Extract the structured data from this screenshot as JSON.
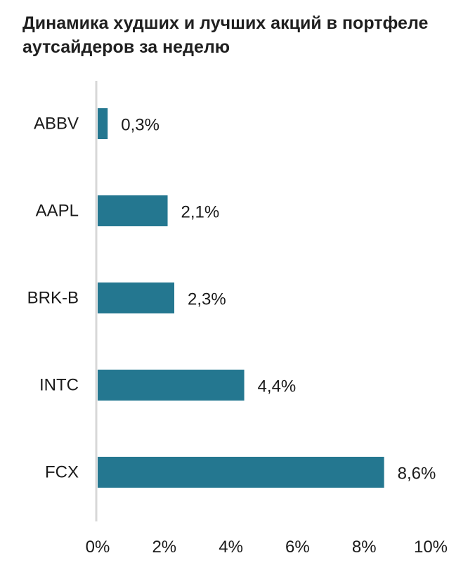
{
  "title": "Динамика худших и лучших акций в портфеле аутсайдеров за неделю",
  "colors": {
    "bar": "#247790",
    "axis": "#d7d7d7"
  },
  "chart_data": {
    "type": "bar",
    "orientation": "horizontal",
    "title": "Динамика худших и лучших акций в портфеле аутсайдеров за неделю",
    "categories": [
      "ABBV",
      "AAPL",
      "BRK-B",
      "INTC",
      "FCX"
    ],
    "values": [
      0.3,
      2.1,
      2.3,
      4.4,
      8.6
    ],
    "value_labels": [
      "0,3%",
      "2,1%",
      "2,3%",
      "4,4%",
      "8,6%"
    ],
    "xlim": [
      0,
      10
    ],
    "xticks": [
      0,
      2,
      4,
      6,
      8,
      10
    ],
    "xtick_labels": [
      "0%",
      "2%",
      "4%",
      "6%",
      "8%",
      "10%"
    ],
    "grid": false,
    "legend": "none"
  }
}
